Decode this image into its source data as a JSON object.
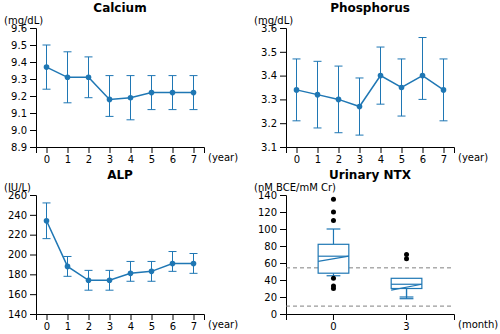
{
  "chart_data": [
    {
      "type": "line",
      "title": "Calcium",
      "y_label": "(mg/dL)",
      "x_label": "(year)",
      "x": [
        0,
        1,
        2,
        3,
        4,
        5,
        6,
        7
      ],
      "values": [
        9.37,
        9.31,
        9.31,
        9.18,
        9.19,
        9.22,
        9.22,
        9.22
      ],
      "error_upper": [
        0.13,
        0.15,
        0.12,
        0.14,
        0.13,
        0.1,
        0.1,
        0.1
      ],
      "error_lower": [
        0.13,
        0.15,
        0.12,
        0.1,
        0.13,
        0.1,
        0.1,
        0.1
      ],
      "marker": "circle",
      "xlim": [
        -0.5,
        7.5
      ],
      "xticks": [
        0,
        1,
        2,
        3,
        4,
        5,
        6,
        7
      ],
      "ylim": [
        8.9,
        9.6
      ],
      "yticks": [
        8.9,
        {
          "value": 9.0,
          "label": "9.0"
        },
        9.1,
        9.2,
        9.3,
        9.4,
        9.5,
        9.6
      ]
    },
    {
      "type": "line",
      "title": "Phosphorus",
      "y_label": "(mg/dL)",
      "x_label": "(year)",
      "x": [
        0,
        1,
        2,
        3,
        4,
        5,
        6,
        7
      ],
      "values": [
        3.34,
        3.32,
        3.3,
        3.27,
        3.4,
        3.35,
        3.4,
        3.34
      ],
      "error_upper": [
        0.13,
        0.14,
        0.14,
        0.12,
        0.12,
        0.12,
        0.16,
        0.13
      ],
      "error_lower": [
        0.13,
        0.14,
        0.14,
        0.12,
        0.12,
        0.12,
        0.1,
        0.13
      ],
      "marker": "circle",
      "xlim": [
        -0.5,
        7.5
      ],
      "xticks": [
        0,
        1,
        2,
        3,
        4,
        5,
        6,
        7
      ],
      "ylim": [
        3.1,
        3.6
      ],
      "yticks": [
        3.1,
        3.2,
        3.3,
        3.4,
        3.5,
        3.6
      ]
    },
    {
      "type": "line",
      "title": "ALP",
      "y_label": "(IU/L)",
      "x_label": "(year)",
      "x": [
        0,
        1,
        2,
        3,
        4,
        5,
        6,
        7
      ],
      "values": [
        234,
        188,
        174,
        174,
        181,
        183,
        191,
        191
      ],
      "error_upper": [
        18,
        10,
        10,
        10,
        12,
        10,
        12,
        10
      ],
      "error_lower": [
        18,
        10,
        10,
        10,
        8,
        10,
        8,
        10
      ],
      "marker": "circle",
      "xlim": [
        -0.5,
        7.5
      ],
      "xticks": [
        0,
        1,
        2,
        3,
        4,
        5,
        6,
        7
      ],
      "ylim": [
        140,
        260
      ],
      "yticks": [
        140,
        160,
        180,
        200,
        220,
        240,
        260
      ]
    },
    {
      "type": "box",
      "title": "Urinary NTX",
      "y_label": "(nM BCE/mM Cr)",
      "x_label": "(month)",
      "categories": [
        "0",
        "3"
      ],
      "boxes": [
        {
          "median": 68,
          "q1": 48,
          "q3": 82,
          "whisker_low": 45,
          "whisker_high": 100,
          "outliers": [
            135,
            120,
            110,
            42,
            33,
            30
          ],
          "trend_y1": 62,
          "trend_y2": 68
        },
        {
          "median": 35,
          "q1": 30,
          "q3": 42,
          "whisker_low": 18,
          "whisker_high": 20,
          "outliers": [
            70,
            65
          ],
          "trend_y1": 28,
          "trend_y2": 35
        }
      ],
      "upper_limit": 54.3,
      "lower_limit": 9.3,
      "ylim": [
        0,
        140
      ],
      "yticks": [
        0,
        20,
        40,
        60,
        80,
        100,
        120,
        140
      ]
    }
  ]
}
